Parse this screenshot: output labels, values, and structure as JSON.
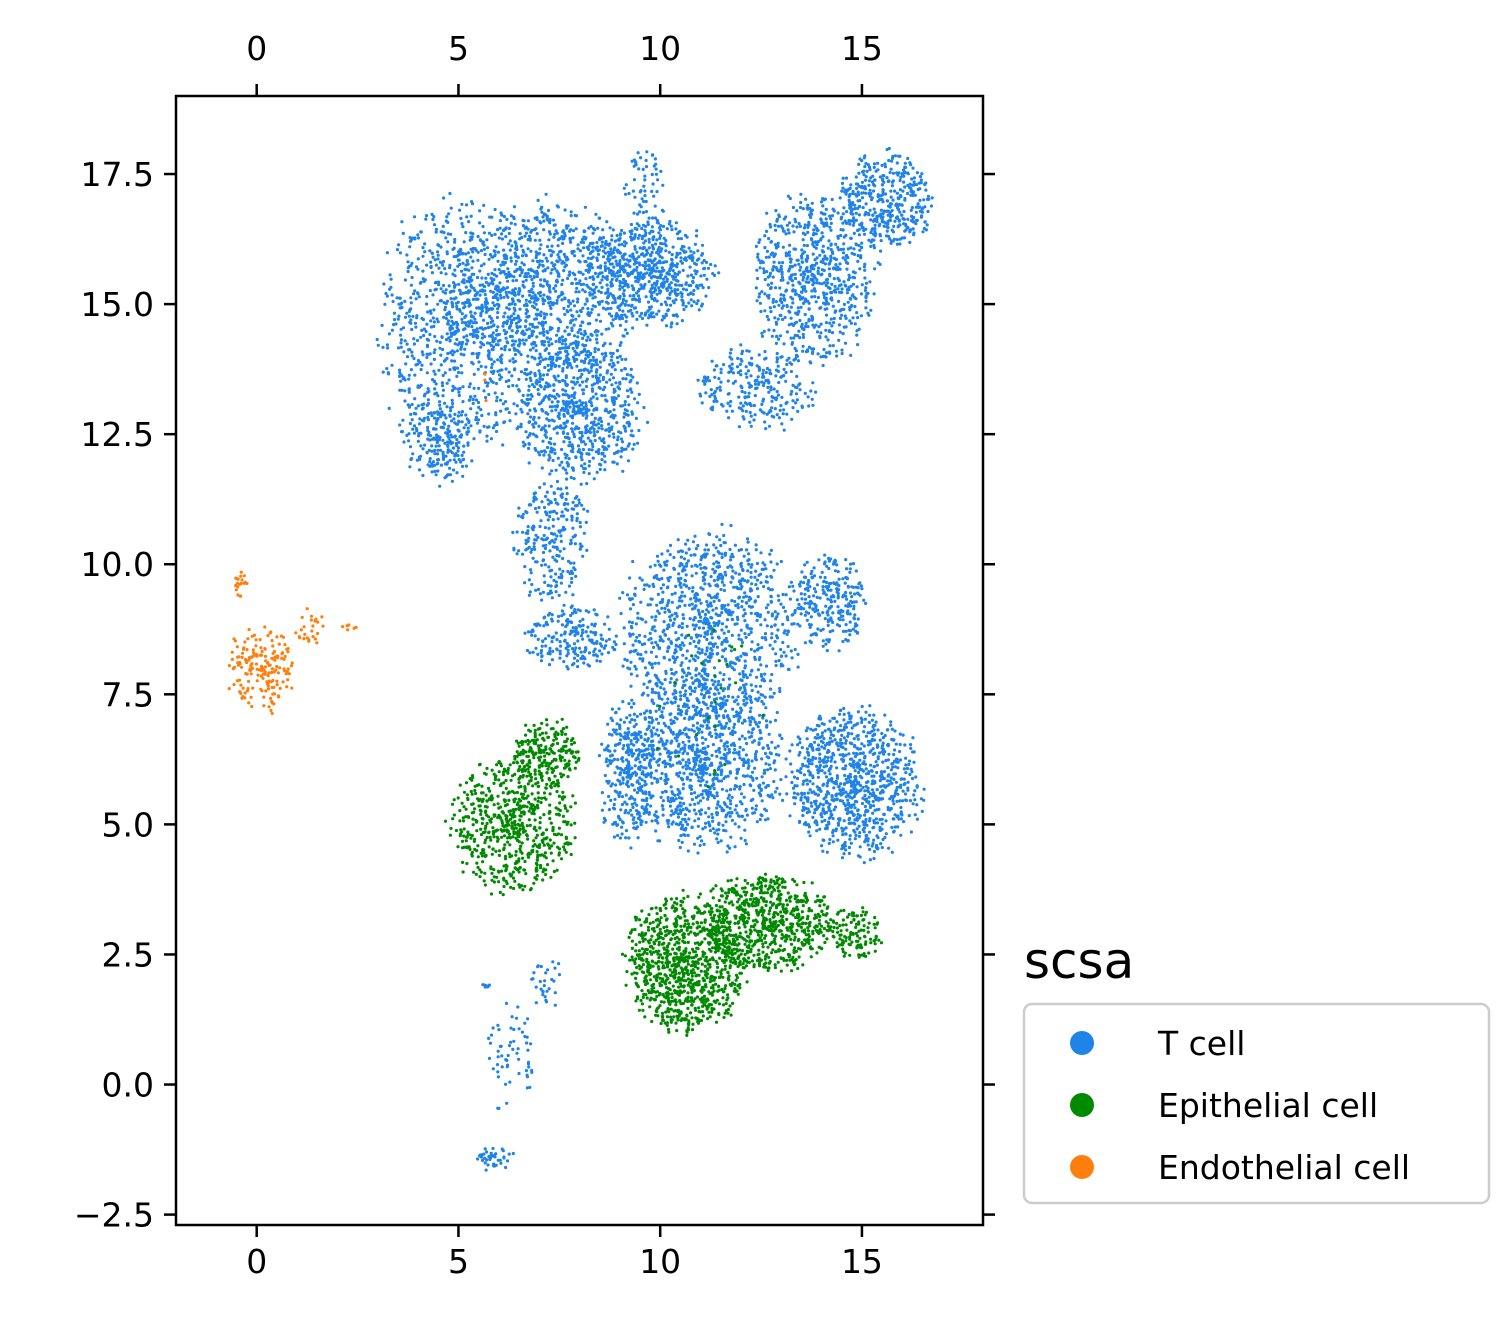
{
  "chart_data": {
    "type": "scatter",
    "title": "",
    "xlabel": "",
    "ylabel": "",
    "xlim": [
      -2,
      18
    ],
    "ylim": [
      -2.7,
      19
    ],
    "x_ticks": [
      0,
      5,
      10,
      15
    ],
    "x_tick_labels": [
      "0",
      "5",
      "10",
      "15"
    ],
    "y_ticks": [
      -2.5,
      0,
      2.5,
      5,
      7.5,
      10,
      12.5,
      15,
      17.5
    ],
    "y_tick_labels": [
      "−2.5",
      "0.0",
      "2.5",
      "5.0",
      "7.5",
      "10.0",
      "12.5",
      "15.0",
      "17.5"
    ],
    "x_ticks_top": true,
    "y_ticks_right": true,
    "grid": false,
    "legend": {
      "title": "scsa",
      "placement": "outside-right-bottom",
      "entries": [
        {
          "label": "T cell",
          "color": "#1f83e8"
        },
        {
          "label": "Epithelial cell",
          "color": "#008a00"
        },
        {
          "label": "Endothelial cell",
          "color": "#ff7f0e"
        }
      ]
    },
    "series": [
      {
        "name": "T cell",
        "color": "#1f83e8",
        "regions": [
          {
            "cx": 5.0,
            "cy": 14.5,
            "rx": 1.9,
            "ry": 2.4,
            "n": 900
          },
          {
            "cx": 7.2,
            "cy": 15.3,
            "rx": 2.2,
            "ry": 1.6,
            "n": 900
          },
          {
            "cx": 9.8,
            "cy": 15.6,
            "rx": 1.5,
            "ry": 1.0,
            "n": 600
          },
          {
            "cx": 8.0,
            "cy": 13.0,
            "rx": 1.5,
            "ry": 1.4,
            "n": 700
          },
          {
            "cx": 4.5,
            "cy": 12.3,
            "rx": 0.9,
            "ry": 0.7,
            "n": 150
          },
          {
            "cx": 7.3,
            "cy": 10.5,
            "rx": 0.9,
            "ry": 1.2,
            "n": 250
          },
          {
            "cx": 7.8,
            "cy": 8.6,
            "rx": 1.1,
            "ry": 0.6,
            "n": 200
          },
          {
            "cx": 9.6,
            "cy": 17.2,
            "rx": 0.5,
            "ry": 0.8,
            "n": 60
          },
          {
            "cx": 13.8,
            "cy": 15.5,
            "rx": 1.5,
            "ry": 1.6,
            "n": 700
          },
          {
            "cx": 15.6,
            "cy": 17.0,
            "rx": 1.1,
            "ry": 0.9,
            "n": 400
          },
          {
            "cx": 12.4,
            "cy": 13.4,
            "rx": 1.5,
            "ry": 0.8,
            "n": 250
          },
          {
            "cx": 11.2,
            "cy": 8.8,
            "rx": 2.2,
            "ry": 1.8,
            "n": 1000
          },
          {
            "cx": 14.2,
            "cy": 9.3,
            "rx": 0.9,
            "ry": 0.9,
            "n": 250
          },
          {
            "cx": 11.0,
            "cy": 6.2,
            "rx": 2.0,
            "ry": 1.6,
            "n": 1000
          },
          {
            "cx": 14.8,
            "cy": 5.8,
            "rx": 1.6,
            "ry": 1.4,
            "n": 900
          },
          {
            "cx": 9.2,
            "cy": 6.0,
            "rx": 0.7,
            "ry": 1.4,
            "n": 250
          },
          {
            "cx": 6.3,
            "cy": 0.6,
            "rx": 0.6,
            "ry": 1.1,
            "n": 60
          },
          {
            "cx": 7.2,
            "cy": 1.9,
            "rx": 0.4,
            "ry": 0.5,
            "n": 30
          },
          {
            "cx": 5.9,
            "cy": -1.4,
            "rx": 0.5,
            "ry": 0.25,
            "n": 40
          },
          {
            "cx": 5.7,
            "cy": 1.9,
            "rx": 0.1,
            "ry": 0.05,
            "n": 8
          }
        ]
      },
      {
        "name": "Epithelial cell",
        "color": "#008a00",
        "regions": [
          {
            "cx": 6.4,
            "cy": 5.0,
            "rx": 1.5,
            "ry": 1.3,
            "n": 650
          },
          {
            "cx": 7.2,
            "cy": 6.4,
            "rx": 0.8,
            "ry": 0.6,
            "n": 200
          },
          {
            "cx": 10.6,
            "cy": 2.3,
            "rx": 1.4,
            "ry": 1.3,
            "n": 900
          },
          {
            "cx": 12.6,
            "cy": 3.1,
            "rx": 1.6,
            "ry": 0.9,
            "n": 700
          },
          {
            "cx": 14.8,
            "cy": 2.9,
            "rx": 0.8,
            "ry": 0.5,
            "n": 120
          },
          {
            "cx": 11.3,
            "cy": 7.0,
            "rx": 1.5,
            "ry": 2.0,
            "n": 25
          }
        ]
      },
      {
        "name": "Endothelial cell",
        "color": "#ff7f0e",
        "regions": [
          {
            "cx": 0.1,
            "cy": 8.0,
            "rx": 0.8,
            "ry": 0.8,
            "n": 180
          },
          {
            "cx": -0.4,
            "cy": 9.6,
            "rx": 0.15,
            "ry": 0.3,
            "n": 20
          },
          {
            "cx": 1.3,
            "cy": 8.8,
            "rx": 0.4,
            "ry": 0.35,
            "n": 25
          },
          {
            "cx": 2.3,
            "cy": 8.8,
            "rx": 0.4,
            "ry": 0.08,
            "n": 6
          },
          {
            "cx": 5.6,
            "cy": 13.2,
            "rx": 0.2,
            "ry": 0.5,
            "n": 3
          }
        ]
      }
    ]
  }
}
